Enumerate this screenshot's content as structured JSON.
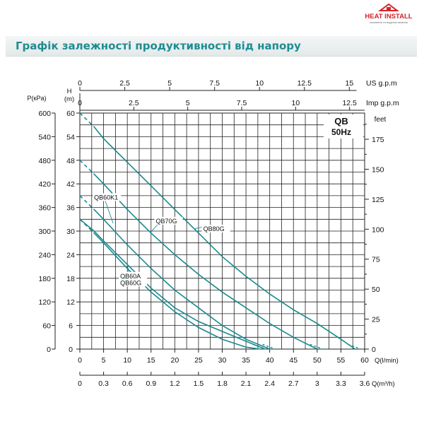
{
  "logo": {
    "text": "HEAT INSTALL",
    "subtitle": "опалення та водопостачання"
  },
  "header": {
    "title": "Графік залежності продуктивності від напору"
  },
  "colors": {
    "curve": "#1a8a8f",
    "grid": "#222222",
    "title": "#1f8c92",
    "logo_red": "#d2232a"
  },
  "chart_data": {
    "type": "line",
    "badge": [
      "QB",
      "50Hz"
    ],
    "axes": {
      "h": {
        "label": "H",
        "unit": "(m)",
        "min": 0,
        "max": 60,
        "ticks": [
          0,
          6,
          12,
          18,
          24,
          30,
          36,
          42,
          48,
          54,
          60
        ]
      },
      "p": {
        "label": "P(кPa)",
        "min": 0,
        "max": 600,
        "ticks": [
          0,
          60,
          120,
          180,
          240,
          300,
          360,
          420,
          480,
          540,
          600
        ]
      },
      "feet": {
        "label": "feet",
        "ticks": [
          0,
          25,
          50,
          75,
          100,
          125,
          150,
          175
        ]
      },
      "q_lmin": {
        "label": "Q(l/min)",
        "min": 0,
        "max": 60,
        "ticks": [
          0,
          5,
          10,
          15,
          20,
          25,
          30,
          35,
          40,
          45,
          50,
          55,
          60
        ]
      },
      "q_m3h": {
        "label": "Q(m³/h)",
        "ticks": [
          "0",
          "0.3",
          "0.6",
          "0.9",
          "1.2",
          "1.5",
          "1.8",
          "2.1",
          "2.4",
          "2.7",
          "3",
          "3.3",
          "3.6"
        ]
      },
      "us_gpm": {
        "label": "US  g.p.m",
        "ticks": [
          "0",
          "2.5",
          "5",
          "7.5",
          "10",
          "12.5",
          "15"
        ]
      },
      "imp_gpm": {
        "label": "Imp  g.p.m",
        "ticks": [
          "0",
          "2.5",
          "5",
          "7.5",
          "10",
          "12.5"
        ]
      }
    },
    "series": [
      {
        "name": "QB80G",
        "dashed_until": 3,
        "points": [
          [
            0,
            60
          ],
          [
            3,
            56.5
          ],
          [
            5,
            53.5
          ],
          [
            10,
            47.5
          ],
          [
            15,
            41.5
          ],
          [
            20,
            35.5
          ],
          [
            25,
            29.5
          ],
          [
            30,
            23.5
          ],
          [
            35,
            18.5
          ],
          [
            40,
            14
          ],
          [
            45,
            10
          ],
          [
            50,
            6.5
          ],
          [
            55,
            2.5
          ],
          [
            58,
            0
          ]
        ]
      },
      {
        "name": "QB70G",
        "dashed_until": 3,
        "points": [
          [
            0,
            48
          ],
          [
            3,
            44.5
          ],
          [
            5,
            42
          ],
          [
            10,
            35.5
          ],
          [
            15,
            29.5
          ],
          [
            20,
            24
          ],
          [
            25,
            19
          ],
          [
            30,
            14.5
          ],
          [
            35,
            10.5
          ],
          [
            40,
            6.5
          ],
          [
            45,
            3
          ],
          [
            50,
            0
          ]
        ]
      },
      {
        "name": "QB60K1",
        "dashed_until": 3,
        "points": [
          [
            0,
            39
          ],
          [
            3,
            35.5
          ],
          [
            5,
            33
          ],
          [
            10,
            26.5
          ],
          [
            15,
            20.5
          ],
          [
            20,
            15
          ],
          [
            25,
            10.5
          ],
          [
            30,
            6
          ],
          [
            35,
            2.5
          ],
          [
            40,
            0
          ]
        ]
      },
      {
        "name": "QB60A",
        "dashed_until": 0,
        "points": [
          [
            0,
            33
          ],
          [
            3,
            30
          ],
          [
            5,
            27.5
          ],
          [
            10,
            21.5
          ],
          [
            15,
            15.5
          ],
          [
            20,
            10.5
          ],
          [
            25,
            7
          ],
          [
            30,
            4.5
          ],
          [
            35,
            2
          ],
          [
            39,
            0
          ]
        ]
      },
      {
        "name": "QB60G",
        "dashed_until": 3,
        "points": [
          [
            0,
            33
          ],
          [
            3,
            29.5
          ],
          [
            5,
            27
          ],
          [
            10,
            20.5
          ],
          [
            15,
            14.5
          ],
          [
            20,
            9.5
          ],
          [
            25,
            5.5
          ],
          [
            30,
            2.5
          ],
          [
            35,
            0.5
          ],
          [
            38,
            0
          ]
        ]
      }
    ],
    "labels": [
      {
        "text": "QB80G",
        "series": "QB80G",
        "at": [
          26,
          30
        ]
      },
      {
        "text": "QB70G",
        "series": "QB70G",
        "at": [
          16,
          32
        ]
      },
      {
        "text": "QB60K1",
        "series": "QB60K1",
        "at": [
          3,
          38
        ]
      },
      {
        "text": "QB60A",
        "series": "QB60A",
        "at": [
          8.5,
          18
        ]
      },
      {
        "text": "QB60G",
        "series": "QB60G",
        "at": [
          8.5,
          16.3
        ]
      }
    ]
  }
}
